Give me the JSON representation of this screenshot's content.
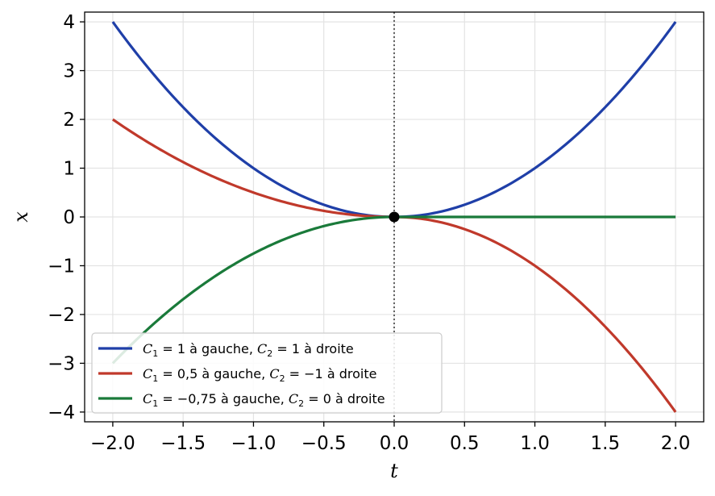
{
  "chart_data": {
    "type": "line",
    "title": "",
    "xlabel": "t",
    "ylabel": "x",
    "xlim": [
      -2.2,
      2.2
    ],
    "ylim": [
      -4.2,
      4.2
    ],
    "xticks": [
      -2.0,
      -1.5,
      -1.0,
      -0.5,
      0.0,
      0.5,
      1.0,
      1.5,
      2.0
    ],
    "xtick_labels": [
      "−2.0",
      "−1.5",
      "−1.0",
      "−0.5",
      "0.0",
      "0.5",
      "1.0",
      "1.5",
      "2.0"
    ],
    "yticks": [
      -4,
      -3,
      -2,
      -1,
      0,
      1,
      2,
      3,
      4
    ],
    "ytick_labels": [
      "−4",
      "−3",
      "−2",
      "−1",
      "0",
      "1",
      "2",
      "3",
      "4"
    ],
    "grid": true,
    "legend_position": "lower-left",
    "vline_x": 0,
    "marker": {
      "x": 0,
      "y": 0,
      "color": "#000000"
    },
    "series": [
      {
        "legend_segments": [
          {
            "t": "C",
            "s": "1",
            "u": " = 1 à gauche, "
          },
          {
            "t": "C",
            "s": "2",
            "u": " = 1 à droite"
          }
        ],
        "color": "#1f3fa8",
        "c_left": 1,
        "c_right": 1,
        "x": [
          -2.0,
          -1.5,
          -1.0,
          -0.5,
          0.0,
          0.5,
          1.0,
          1.5,
          2.0
        ],
        "y": [
          4.0,
          2.25,
          1.0,
          0.25,
          0.0,
          0.25,
          1.0,
          2.25,
          4.0
        ]
      },
      {
        "legend_segments": [
          {
            "t": "C",
            "s": "1",
            "u": " = 0,5 à gauche, "
          },
          {
            "t": "C",
            "s": "2",
            "u": " = −1 à droite"
          }
        ],
        "color": "#c0392b",
        "c_left": 0.5,
        "c_right": -1,
        "x": [
          -2.0,
          -1.5,
          -1.0,
          -0.5,
          0.0,
          0.5,
          1.0,
          1.5,
          2.0
        ],
        "y": [
          2.0,
          1.125,
          0.5,
          0.125,
          0.0,
          -0.25,
          -1.0,
          -2.25,
          -4.0
        ]
      },
      {
        "legend_segments": [
          {
            "t": "C",
            "s": "1",
            "u": " = −0,75 à gauche, "
          },
          {
            "t": "C",
            "s": "2",
            "u": " = 0 à droite"
          }
        ],
        "color": "#1a7a3a",
        "c_left": -0.75,
        "c_right": 0,
        "x": [
          -2.0,
          -1.5,
          -1.0,
          -0.5,
          0.0,
          0.5,
          1.0,
          1.5,
          2.0
        ],
        "y": [
          -3.0,
          -1.6875,
          -0.75,
          -0.1875,
          0.0,
          0.0,
          0.0,
          0.0,
          0.0
        ]
      }
    ]
  }
}
